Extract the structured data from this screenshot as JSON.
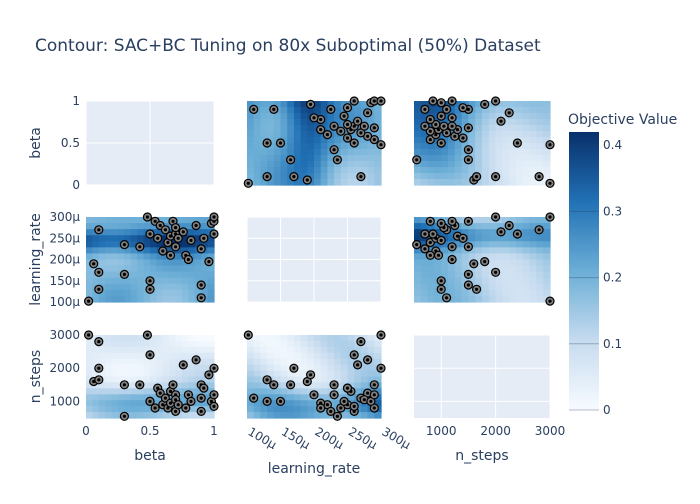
{
  "chart_data": {
    "type": "contour",
    "title": "Contour: SAC+BC Tuning on 80x Suboptimal (50%) Dataset",
    "params": [
      "beta",
      "learning_rate",
      "n_steps"
    ],
    "axis_labels": {
      "beta": "beta",
      "learning_rate": "learning_rate",
      "n_steps": "n_steps"
    },
    "ranges": {
      "beta": [
        0,
        1
      ],
      "learning_rate": [
        0.0001,
        0.0003
      ],
      "n_steps": [
        500,
        3000
      ]
    },
    "ticks": {
      "beta": [
        {
          "v": 0,
          "label": "0"
        },
        {
          "v": 0.5,
          "label": "0.5"
        },
        {
          "v": 1,
          "label": "1"
        }
      ],
      "learning_rate": [
        {
          "v": 0.0001,
          "label": "100μ"
        },
        {
          "v": 0.00015,
          "label": "150μ"
        },
        {
          "v": 0.0002,
          "label": "200μ"
        },
        {
          "v": 0.00025,
          "label": "250μ"
        },
        {
          "v": 0.0003,
          "label": "300μ"
        }
      ],
      "n_steps": [
        {
          "v": 1000,
          "label": "1000"
        },
        {
          "v": 2000,
          "label": "2000"
        },
        {
          "v": 3000,
          "label": "3000"
        }
      ]
    },
    "colorbar": {
      "title": "Objective Value",
      "range": [
        0,
        0.42
      ],
      "ticks": [
        {
          "v": 0,
          "label": "0"
        },
        {
          "v": 0.1,
          "label": "0.1"
        },
        {
          "v": 0.2,
          "label": "0.2"
        },
        {
          "v": 0.3,
          "label": "0.3"
        },
        {
          "v": 0.4,
          "label": "0.4"
        }
      ],
      "colors": [
        "#f7fbff",
        "#c6dbef",
        "#6baed6",
        "#2171b5",
        "#08306b"
      ]
    },
    "trials": [
      {
        "beta": 0.02,
        "learning_rate": 0.000102,
        "n_steps": 3000
      },
      {
        "beta": 0.06,
        "learning_rate": 0.00019,
        "n_steps": 1600
      },
      {
        "beta": 0.1,
        "learning_rate": 0.00027,
        "n_steps": 2800
      },
      {
        "beta": 0.1,
        "learning_rate": 0.00017,
        "n_steps": 2000
      },
      {
        "beta": 0.1,
        "learning_rate": 0.00013,
        "n_steps": 1650
      },
      {
        "beta": 0.3,
        "learning_rate": 0.000165,
        "n_steps": 1500
      },
      {
        "beta": 0.3,
        "learning_rate": 0.000235,
        "n_steps": 550
      },
      {
        "beta": 0.42,
        "learning_rate": 0.00023,
        "n_steps": 1500
      },
      {
        "beta": 0.48,
        "learning_rate": 0.0003,
        "n_steps": 3000
      },
      {
        "beta": 0.5,
        "learning_rate": 0.00026,
        "n_steps": 2400
      },
      {
        "beta": 0.5,
        "learning_rate": 0.00013,
        "n_steps": 1000
      },
      {
        "beta": 0.5,
        "learning_rate": 0.00015,
        "n_steps": 1000
      },
      {
        "beta": 0.54,
        "learning_rate": 0.00029,
        "n_steps": 800
      },
      {
        "beta": 0.56,
        "learning_rate": 0.00025,
        "n_steps": 1400
      },
      {
        "beta": 0.58,
        "learning_rate": 0.00028,
        "n_steps": 1250
      },
      {
        "beta": 0.6,
        "learning_rate": 0.00022,
        "n_steps": 900
      },
      {
        "beta": 0.62,
        "learning_rate": 0.00027,
        "n_steps": 1100
      },
      {
        "beta": 0.64,
        "learning_rate": 0.00024,
        "n_steps": 800
      },
      {
        "beta": 0.66,
        "learning_rate": 0.000255,
        "n_steps": 1300
      },
      {
        "beta": 0.66,
        "learning_rate": 0.00021,
        "n_steps": 950
      },
      {
        "beta": 0.68,
        "learning_rate": 0.00029,
        "n_steps": 1500
      },
      {
        "beta": 0.7,
        "learning_rate": 0.00026,
        "n_steps": 700
      },
      {
        "beta": 0.7,
        "learning_rate": 0.00023,
        "n_steps": 1200
      },
      {
        "beta": 0.7,
        "learning_rate": 0.000275,
        "n_steps": 1050
      },
      {
        "beta": 0.72,
        "learning_rate": 0.00025,
        "n_steps": 900
      },
      {
        "beta": 0.76,
        "learning_rate": 0.000265,
        "n_steps": 2100
      },
      {
        "beta": 0.78,
        "learning_rate": 0.00021,
        "n_steps": 800
      },
      {
        "beta": 0.8,
        "learning_rate": 0.0002,
        "n_steps": 1200
      },
      {
        "beta": 0.82,
        "learning_rate": 0.000245,
        "n_steps": 1000
      },
      {
        "beta": 0.86,
        "learning_rate": 0.00028,
        "n_steps": 2250
      },
      {
        "beta": 0.9,
        "learning_rate": 0.00014,
        "n_steps": 1500
      },
      {
        "beta": 0.9,
        "learning_rate": 0.00011,
        "n_steps": 1100
      },
      {
        "beta": 0.9,
        "learning_rate": 0.000225,
        "n_steps": 700
      },
      {
        "beta": 0.92,
        "learning_rate": 0.00025,
        "n_steps": 1400
      },
      {
        "beta": 0.96,
        "learning_rate": 0.000195,
        "n_steps": 1800
      },
      {
        "beta": 0.98,
        "learning_rate": 0.000285,
        "n_steps": 1000
      },
      {
        "beta": 1.0,
        "learning_rate": 0.00029,
        "n_steps": 1200
      },
      {
        "beta": 1.0,
        "learning_rate": 0.00026,
        "n_steps": 850
      },
      {
        "beta": 1.0,
        "learning_rate": 0.0003,
        "n_steps": 2000
      }
    ]
  }
}
